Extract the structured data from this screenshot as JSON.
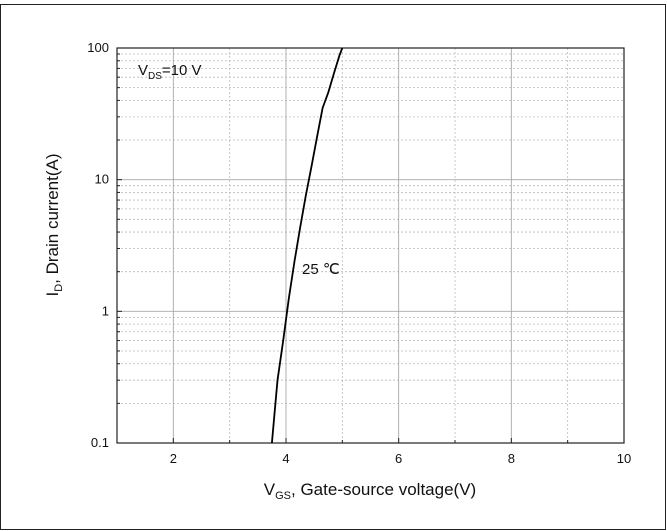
{
  "chart_data": {
    "type": "line",
    "title": "",
    "xlabel": {
      "main": "V",
      "sub": "GS",
      "rest": ", Gate-source voltage(V)"
    },
    "ylabel": {
      "main": "I",
      "sub": "D",
      "rest": ", Drain current(A)"
    },
    "xlim": [
      1,
      10
    ],
    "ylim": [
      0.1,
      100
    ],
    "y_scale": "log",
    "x_ticks": [
      2,
      4,
      6,
      8,
      10
    ],
    "x_tick_labels": [
      "2",
      "4",
      "6",
      "8",
      "10"
    ],
    "y_ticks": [
      0.1,
      1,
      10,
      100
    ],
    "y_tick_labels": [
      "0.1",
      "1",
      "10",
      "100"
    ],
    "grid": true,
    "legend": "none",
    "condition_label": {
      "main": "V",
      "sub": "DS",
      "rest": "=10 V"
    },
    "series": [
      {
        "name": "25 ℃",
        "color": "#000000",
        "x": [
          3.75,
          3.85,
          3.95,
          4.05,
          4.15,
          4.25,
          4.35,
          4.45,
          4.55,
          4.65,
          4.75,
          4.85,
          4.95,
          5.0
        ],
        "y": [
          0.1,
          0.3,
          0.6,
          1.25,
          2.4,
          4.3,
          7.5,
          12.5,
          21,
          35,
          46,
          64,
          88,
          100
        ]
      }
    ]
  }
}
